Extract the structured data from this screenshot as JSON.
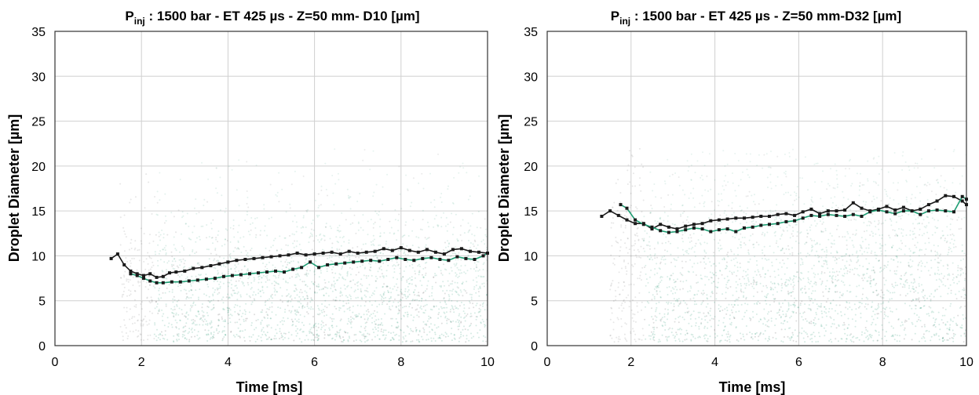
{
  "chart_data": [
    {
      "type": "scatter",
      "title": {
        "main": "P",
        "sub": "inj",
        "rest": " : 1500 bar - ET 425 µs  - Z=50 mm- D10 [µm]"
      },
      "xlabel": "Time [ms]",
      "ylabel": "Droplet Diameter [µm]",
      "xlim": [
        0,
        10
      ],
      "ylim": [
        0,
        35
      ],
      "xticks": [
        0,
        2,
        4,
        6,
        8,
        10
      ],
      "yticks": [
        0,
        5,
        10,
        15,
        20,
        25,
        30,
        35
      ],
      "grid": true,
      "colors": {
        "black_series": "#1a1a1a",
        "green_series": "#1f9e74",
        "cloud_dark": "#555555",
        "cloud_green": "#2e9a78"
      },
      "series": [
        {
          "color": "black",
          "x": [
            1.3,
            1.45,
            1.6,
            1.75,
            1.9,
            2.05,
            2.2,
            2.35,
            2.5,
            2.65,
            2.8,
            3.0,
            3.2,
            3.4,
            3.6,
            3.8,
            4.0,
            4.2,
            4.4,
            4.6,
            4.8,
            5.0,
            5.2,
            5.4,
            5.6,
            5.8,
            6.0,
            6.2,
            6.4,
            6.6,
            6.8,
            7.0,
            7.2,
            7.4,
            7.6,
            7.8,
            8.0,
            8.2,
            8.4,
            8.6,
            8.8,
            9.0,
            9.2,
            9.4,
            9.6,
            9.8,
            10.0
          ],
          "y": [
            9.7,
            10.2,
            9.0,
            8.3,
            8.0,
            7.8,
            8.0,
            7.6,
            7.7,
            8.1,
            8.2,
            8.3,
            8.6,
            8.7,
            8.9,
            9.1,
            9.3,
            9.5,
            9.6,
            9.7,
            9.8,
            9.9,
            10.0,
            10.1,
            10.3,
            10.1,
            10.2,
            10.3,
            10.4,
            10.2,
            10.5,
            10.3,
            10.4,
            10.5,
            10.8,
            10.6,
            10.9,
            10.6,
            10.4,
            10.7,
            10.4,
            10.2,
            10.7,
            10.8,
            10.5,
            10.4,
            10.3
          ]
        },
        {
          "color": "green",
          "x": [
            1.75,
            1.9,
            2.05,
            2.2,
            2.35,
            2.5,
            2.7,
            2.9,
            3.1,
            3.3,
            3.5,
            3.7,
            3.9,
            4.1,
            4.3,
            4.5,
            4.7,
            4.9,
            5.1,
            5.3,
            5.5,
            5.7,
            5.9,
            6.1,
            6.3,
            6.5,
            6.7,
            6.9,
            7.1,
            7.3,
            7.5,
            7.7,
            7.9,
            8.1,
            8.3,
            8.5,
            8.7,
            8.9,
            9.1,
            9.3,
            9.5,
            9.7,
            9.9,
            10.0
          ],
          "y": [
            8.0,
            7.8,
            7.5,
            7.2,
            7.0,
            7.0,
            7.1,
            7.1,
            7.2,
            7.3,
            7.4,
            7.5,
            7.7,
            7.8,
            7.9,
            8.0,
            8.1,
            8.2,
            8.3,
            8.2,
            8.5,
            8.7,
            9.3,
            8.7,
            9.0,
            9.1,
            9.2,
            9.3,
            9.4,
            9.5,
            9.4,
            9.6,
            9.8,
            9.6,
            9.5,
            9.7,
            9.8,
            9.6,
            9.5,
            9.9,
            9.7,
            9.6,
            10.0,
            10.3
          ]
        }
      ]
    },
    {
      "type": "scatter",
      "title": {
        "main": "P",
        "sub": "inj",
        "rest": " : 1500 bar - ET 425 µs  - Z=50 mm-D32 [µm]"
      },
      "xlabel": "Time [ms]",
      "ylabel": "Droplet Diameter [µm]",
      "xlim": [
        0,
        10
      ],
      "ylim": [
        0,
        35
      ],
      "xticks": [
        0,
        2,
        4,
        6,
        8,
        10
      ],
      "yticks": [
        0,
        5,
        10,
        15,
        20,
        25,
        30,
        35
      ],
      "grid": true,
      "colors": {
        "black_series": "#1a1a1a",
        "green_series": "#1f9e74",
        "cloud_dark": "#555555",
        "cloud_green": "#2e9a78"
      },
      "series": [
        {
          "color": "black",
          "x": [
            1.3,
            1.5,
            1.7,
            1.9,
            2.1,
            2.3,
            2.5,
            2.7,
            2.9,
            3.1,
            3.3,
            3.5,
            3.7,
            3.9,
            4.1,
            4.3,
            4.5,
            4.7,
            4.9,
            5.1,
            5.3,
            5.5,
            5.7,
            5.9,
            6.1,
            6.3,
            6.5,
            6.7,
            6.9,
            7.1,
            7.3,
            7.5,
            7.7,
            7.9,
            8.1,
            8.3,
            8.5,
            8.7,
            8.9,
            9.1,
            9.3,
            9.5,
            9.7,
            9.9,
            10.0
          ],
          "y": [
            14.4,
            15.0,
            14.5,
            14.0,
            13.6,
            13.6,
            13.0,
            13.5,
            13.2,
            13.0,
            13.3,
            13.5,
            13.6,
            13.9,
            14.0,
            14.1,
            14.2,
            14.2,
            14.3,
            14.4,
            14.4,
            14.6,
            14.7,
            14.5,
            14.9,
            15.2,
            14.7,
            15.0,
            15.0,
            15.1,
            15.9,
            15.3,
            15.0,
            15.2,
            15.5,
            15.1,
            15.4,
            15.0,
            15.2,
            15.7,
            16.1,
            16.7,
            16.6,
            16.1,
            15.7
          ]
        },
        {
          "color": "green",
          "x": [
            1.75,
            1.9,
            2.1,
            2.3,
            2.5,
            2.7,
            2.9,
            3.1,
            3.3,
            3.5,
            3.7,
            3.9,
            4.1,
            4.3,
            4.5,
            4.7,
            4.9,
            5.1,
            5.3,
            5.5,
            5.7,
            5.9,
            6.1,
            6.3,
            6.5,
            6.7,
            6.9,
            7.1,
            7.3,
            7.5,
            7.7,
            7.9,
            8.1,
            8.3,
            8.5,
            8.7,
            8.9,
            9.1,
            9.3,
            9.5,
            9.7,
            9.9,
            10.0
          ],
          "y": [
            15.7,
            15.3,
            14.0,
            13.5,
            13.2,
            12.8,
            12.6,
            12.7,
            12.9,
            13.1,
            13.0,
            12.7,
            12.9,
            13.0,
            12.7,
            13.1,
            13.2,
            13.4,
            13.5,
            13.6,
            13.8,
            13.9,
            14.2,
            14.5,
            14.4,
            14.6,
            14.5,
            14.4,
            14.6,
            14.4,
            14.9,
            15.1,
            14.9,
            14.7,
            15.0,
            15.0,
            14.6,
            15.0,
            15.1,
            15.0,
            14.9,
            16.6,
            16.3
          ]
        }
      ]
    }
  ]
}
